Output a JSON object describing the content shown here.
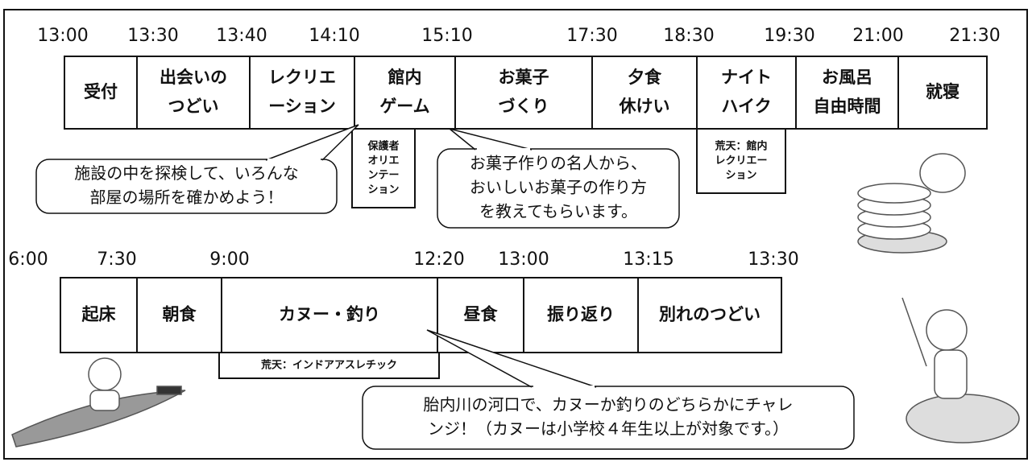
{
  "day1": {
    "times": [
      "13:00",
      "13:30",
      "13:40",
      "14:10",
      "15:10",
      "17:30",
      "18:30",
      "19:30",
      "21:00",
      "21:30"
    ],
    "activities": [
      {
        "lines": [
          "受付"
        ]
      },
      {
        "lines": [
          "出会いの",
          "つどい"
        ]
      },
      {
        "lines": [
          "レクリエ",
          "ーション"
        ]
      },
      {
        "lines": [
          "館内",
          "ゲーム"
        ]
      },
      {
        "lines": [
          "お菓子",
          "づくり"
        ]
      },
      {
        "lines": [
          "夕食",
          "休けい"
        ]
      },
      {
        "lines": [
          "ナイト",
          "ハイク"
        ]
      },
      {
        "lines": [
          "お風呂",
          "自由時間"
        ]
      },
      {
        "lines": [
          "就寝"
        ]
      }
    ],
    "notes": [
      {
        "lines": [
          "保護者",
          "オリエ",
          "ンテー",
          "ション"
        ]
      },
      {
        "lines": [
          "荒天：館内",
          "レクリエー",
          "ション"
        ]
      }
    ],
    "callouts": [
      {
        "lines": [
          "施設の中を探検して、いろんな",
          "部屋の場所を確かめよう！"
        ]
      },
      {
        "lines": [
          "お菓子作りの名人から、",
          "おいしいお菓子の作り方",
          "を教えてもらいます。"
        ]
      }
    ]
  },
  "day2": {
    "times": [
      "6:00",
      "7:30",
      "9:00",
      "12:20",
      "13:00",
      "13:15",
      "13:30"
    ],
    "activities": [
      {
        "lines": [
          "起床"
        ]
      },
      {
        "lines": [
          "朝食"
        ]
      },
      {
        "lines": [
          "カヌー・釣り"
        ]
      },
      {
        "lines": [
          "昼食"
        ]
      },
      {
        "lines": [
          "振り返り"
        ]
      },
      {
        "lines": [
          "別れのつどい"
        ]
      }
    ],
    "notes": [
      {
        "lines": [
          "荒天：インドアアスレチック"
        ]
      }
    ],
    "callouts": [
      {
        "lines": [
          "胎内川の河口で、カヌーか釣りのどちらかにチャレ",
          "ンジ！（カヌーは小学校４年生以上が対象です。）"
        ]
      }
    ]
  }
}
